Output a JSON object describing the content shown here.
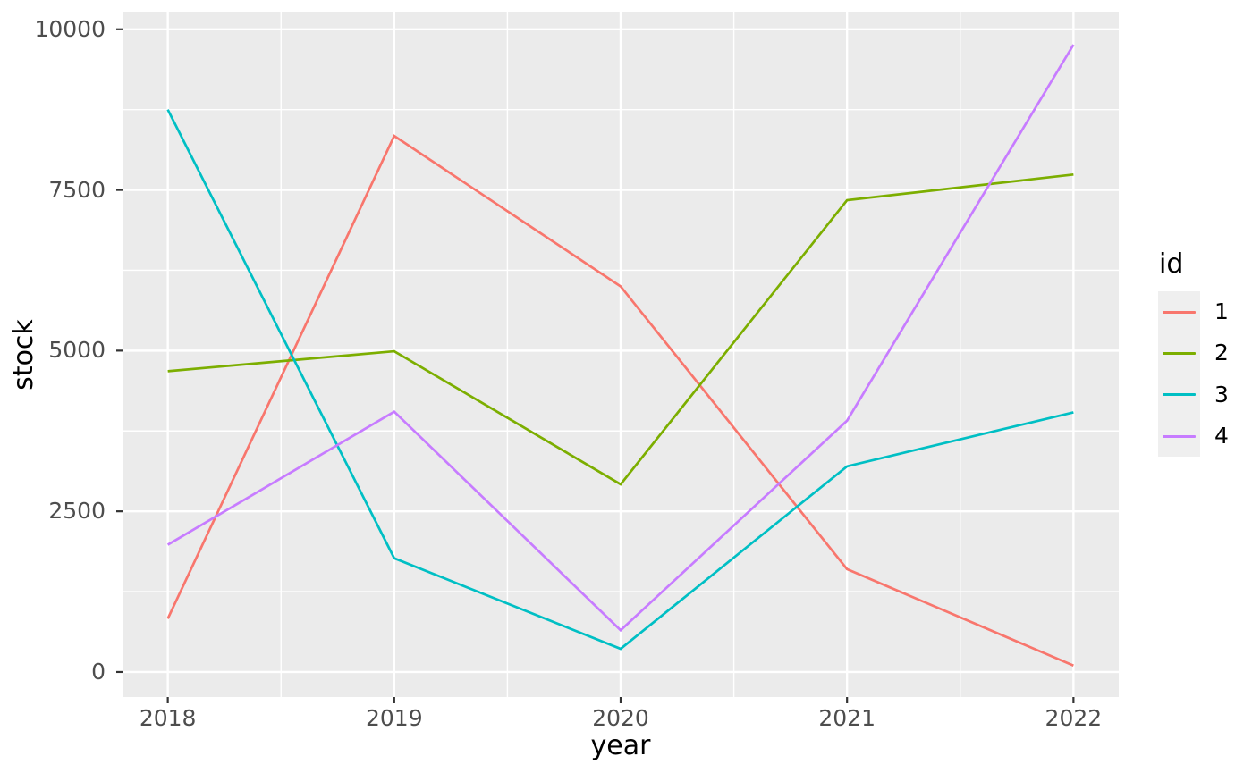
{
  "chart_data": {
    "type": "line",
    "title": "",
    "xlabel": "year",
    "ylabel": "stock",
    "x": [
      2018,
      2019,
      2020,
      2021,
      2022
    ],
    "x_tick_labels": [
      "2018",
      "2019",
      "2020",
      "2021",
      "2022"
    ],
    "y_major_ticks": [
      0,
      2500,
      5000,
      7500,
      10000
    ],
    "y_tick_labels": [
      "0",
      "2500",
      "5000",
      "7500",
      "10000"
    ],
    "y_minor_ticks": [
      1250,
      3750,
      6250,
      8750
    ],
    "x_minor_ticks": [
      2018.5,
      2019.5,
      2020.5,
      2021.5
    ],
    "xlim": [
      2017.8,
      2022.2
    ],
    "ylim": [
      -390,
      10275
    ],
    "grid": true,
    "legend_position": "right",
    "series": [
      {
        "name": "1",
        "color": "#F8766D",
        "values": [
          830,
          8340,
          6000,
          1600,
          100
        ]
      },
      {
        "name": "2",
        "color": "#7CAE00",
        "values": [
          4680,
          4990,
          2920,
          7340,
          7740
        ]
      },
      {
        "name": "3",
        "color": "#00BFC4",
        "values": [
          8750,
          1770,
          360,
          3200,
          4040
        ]
      },
      {
        "name": "4",
        "color": "#C77CFF",
        "values": [
          1980,
          4050,
          650,
          3910,
          9760
        ]
      }
    ],
    "legend": {
      "title": "id",
      "entries": [
        "1",
        "2",
        "3",
        "4"
      ]
    },
    "colors": {
      "panel_bg": "#EBEBEB",
      "grid_line": "#FFFFFF",
      "tick_mark": "#333333",
      "tick_text": "#4D4D4D",
      "axis_title_text": "#000000",
      "legend_key_bg": "#EFEFEF",
      "outer_bg": "#FFFFFF"
    }
  }
}
